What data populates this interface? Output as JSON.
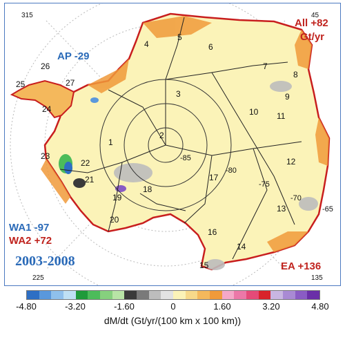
{
  "regions": {
    "ap": "AP -29",
    "all_line1": "All +82",
    "all_line2": "Gt/yr",
    "wa1": "WA1 -97",
    "wa2": "WA2 +72",
    "ea": "EA +136"
  },
  "period": "2003-2008",
  "graticule": {
    "lon_315": "315",
    "lon_45": "45",
    "lon_225": "225",
    "lon_135": "135",
    "lat_85": "-85",
    "lat_80": "-80",
    "lat_75": "-75",
    "lat_70": "-70",
    "lat_65": "-65"
  },
  "basins": [
    "1",
    "2",
    "3",
    "4",
    "5",
    "6",
    "7",
    "8",
    "9",
    "10",
    "11",
    "12",
    "13",
    "14",
    "15",
    "16",
    "17",
    "18",
    "19",
    "20",
    "21",
    "22",
    "23",
    "24",
    "25",
    "26",
    "27"
  ],
  "colorbar": {
    "colors": [
      "#2e6fc4",
      "#5a98dc",
      "#8fc0ec",
      "#bfe0f4",
      "#1f9a3a",
      "#4cbc5a",
      "#86d07e",
      "#b8e4a6",
      "#3a3a3a",
      "#7a7a7a",
      "#bdbdbd",
      "#e2e2e2",
      "#fbf3b8",
      "#f7d98a",
      "#f4b85c",
      "#f09a3a",
      "#f5a8c8",
      "#ec78a8",
      "#e44a78",
      "#d8232a",
      "#c8b6e2",
      "#a98ad4",
      "#8a5cc4",
      "#6a2fa8"
    ],
    "tick_labels": [
      "-4.80",
      "-3.20",
      "-1.60",
      "0",
      "1.60",
      "3.20",
      "4.80"
    ],
    "unit_label": "dM/dt (Gt/yr/(100 km x 100 km))"
  }
}
